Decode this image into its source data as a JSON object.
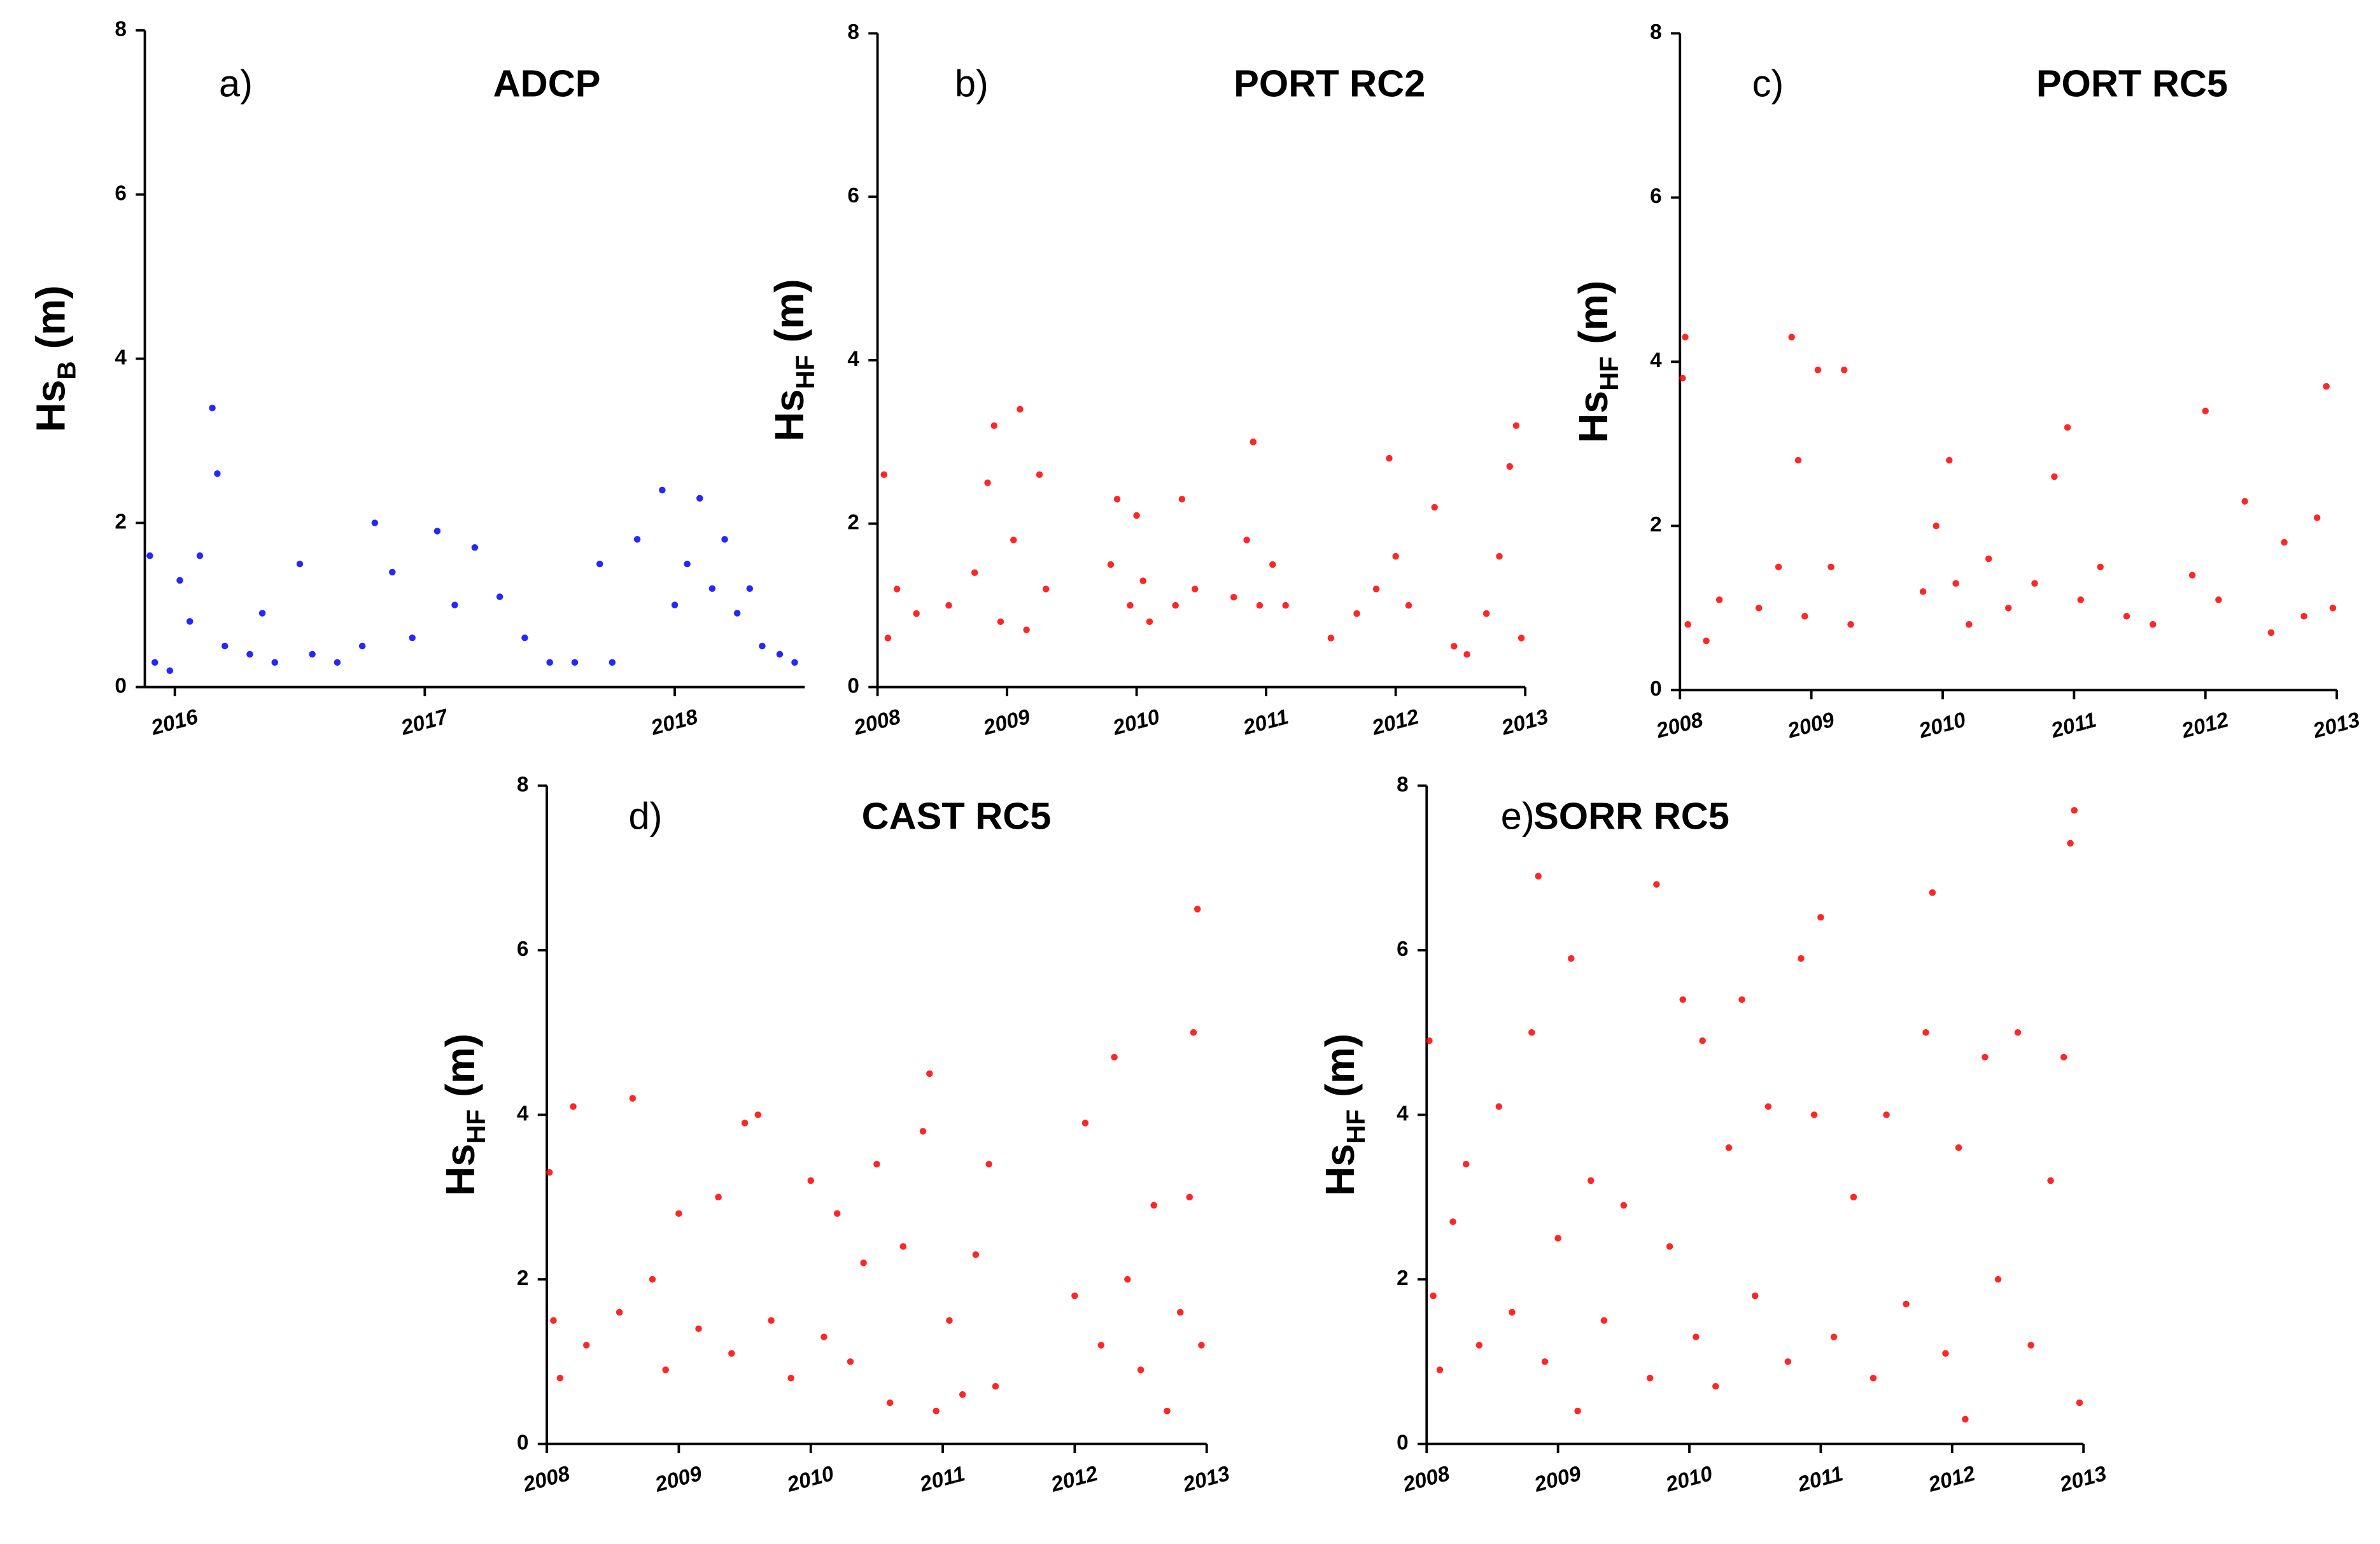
{
  "chart_data": [
    {
      "type": "scatter",
      "panel": "a)",
      "title": "ADCP",
      "ylabel": "Hs",
      "ylabel_sub": "B",
      "ylabel_unit": "(m)",
      "color": "#0000ff",
      "xlim": [
        2015.88,
        2018.52
      ],
      "xticks": [
        2016,
        2017,
        2018
      ],
      "ylim": [
        0,
        8
      ],
      "yticks": [
        0,
        2,
        4,
        6,
        8
      ],
      "x": [
        2015.9,
        2015.92,
        2015.98,
        2016.02,
        2016.06,
        2016.1,
        2016.15,
        2016.17,
        2016.2,
        2016.3,
        2016.35,
        2016.4,
        2016.5,
        2016.55,
        2016.65,
        2016.75,
        2016.8,
        2016.87,
        2016.95,
        2017.05,
        2017.12,
        2017.2,
        2017.3,
        2017.4,
        2017.5,
        2017.6,
        2017.7,
        2017.75,
        2017.85,
        2017.95,
        2018.0,
        2018.05,
        2018.1,
        2018.15,
        2018.2,
        2018.25,
        2018.3,
        2018.35,
        2018.42,
        2018.48
      ],
      "values": [
        1.6,
        0.3,
        0.2,
        1.3,
        0.8,
        1.6,
        3.4,
        2.6,
        0.5,
        0.4,
        0.9,
        0.3,
        1.5,
        0.4,
        0.3,
        0.5,
        2.0,
        1.4,
        0.6,
        1.9,
        1.0,
        1.7,
        1.1,
        0.6,
        0.3,
        0.3,
        1.5,
        0.3,
        1.8,
        2.4,
        1.0,
        1.5,
        2.3,
        1.2,
        1.8,
        0.9,
        1.2,
        0.5,
        0.4,
        0.3
      ]
    },
    {
      "type": "scatter",
      "panel": "b)",
      "title": "PORT RC2",
      "ylabel": "Hs",
      "ylabel_sub": "HF",
      "ylabel_unit": "(m)",
      "color": "#ff0000",
      "xlim": [
        2008,
        2013
      ],
      "xticks": [
        2008,
        2009,
        2010,
        2011,
        2012,
        2013
      ],
      "ylim": [
        0,
        8
      ],
      "yticks": [
        0,
        2,
        4,
        6,
        8
      ],
      "x": [
        2008.05,
        2008.08,
        2008.15,
        2008.3,
        2008.55,
        2008.75,
        2008.85,
        2008.9,
        2008.95,
        2009.05,
        2009.1,
        2009.15,
        2009.25,
        2009.3,
        2009.8,
        2009.85,
        2009.95,
        2010.0,
        2010.05,
        2010.1,
        2010.3,
        2010.35,
        2010.45,
        2010.75,
        2010.85,
        2010.9,
        2010.95,
        2011.05,
        2011.15,
        2011.5,
        2011.7,
        2011.85,
        2011.95,
        2012.0,
        2012.1,
        2012.3,
        2012.45,
        2012.55,
        2012.7,
        2012.8,
        2012.88,
        2012.93,
        2012.97
      ],
      "values": [
        2.6,
        0.6,
        1.2,
        0.9,
        1.0,
        1.4,
        2.5,
        3.2,
        0.8,
        1.8,
        3.4,
        0.7,
        2.6,
        1.2,
        1.5,
        2.3,
        1.0,
        2.1,
        1.3,
        0.8,
        1.0,
        2.3,
        1.2,
        1.1,
        1.8,
        3.0,
        1.0,
        1.5,
        1.0,
        0.6,
        0.9,
        1.2,
        2.8,
        1.6,
        1.0,
        2.2,
        0.5,
        0.4,
        0.9,
        1.6,
        2.7,
        3.2,
        0.6
      ]
    },
    {
      "type": "scatter",
      "panel": "c)",
      "title": "PORT RC5",
      "ylabel": "Hs",
      "ylabel_sub": "HF",
      "ylabel_unit": "(m)",
      "color": "#ff0000",
      "xlim": [
        2008,
        2013
      ],
      "xticks": [
        2008,
        2009,
        2010,
        2011,
        2012,
        2013
      ],
      "ylim": [
        0,
        8
      ],
      "yticks": [
        0,
        2,
        4,
        6,
        8
      ],
      "x": [
        2008.02,
        2008.04,
        2008.06,
        2008.2,
        2008.3,
        2008.6,
        2008.75,
        2008.85,
        2008.9,
        2008.95,
        2009.05,
        2009.15,
        2009.25,
        2009.3,
        2009.85,
        2009.95,
        2010.05,
        2010.1,
        2010.2,
        2010.35,
        2010.5,
        2010.7,
        2010.85,
        2010.95,
        2011.05,
        2011.2,
        2011.4,
        2011.6,
        2011.9,
        2012.0,
        2012.1,
        2012.3,
        2012.5,
        2012.6,
        2012.75,
        2012.85,
        2012.92,
        2012.97
      ],
      "values": [
        3.8,
        4.3,
        0.8,
        0.6,
        1.1,
        1.0,
        1.5,
        4.3,
        2.8,
        0.9,
        3.9,
        1.5,
        3.9,
        0.8,
        1.2,
        2.0,
        2.8,
        1.3,
        0.8,
        1.6,
        1.0,
        1.3,
        2.6,
        3.2,
        1.1,
        1.5,
        0.9,
        0.8,
        1.4,
        3.4,
        1.1,
        2.3,
        0.7,
        1.8,
        0.9,
        2.1,
        3.7,
        1.0
      ]
    },
    {
      "type": "scatter",
      "panel": "d)",
      "title": "CAST RC5",
      "ylabel": "Hs",
      "ylabel_sub": "HF",
      "ylabel_unit": "(m)",
      "color": "#ff0000",
      "xlim": [
        2008,
        2013
      ],
      "xticks": [
        2008,
        2009,
        2010,
        2011,
        2012,
        2013
      ],
      "ylim": [
        0,
        8
      ],
      "yticks": [
        0,
        2,
        4,
        6,
        8
      ],
      "x": [
        2008.02,
        2008.05,
        2008.1,
        2008.2,
        2008.3,
        2008.55,
        2008.65,
        2008.8,
        2008.9,
        2009.0,
        2009.15,
        2009.3,
        2009.4,
        2009.5,
        2009.6,
        2009.7,
        2009.85,
        2010.0,
        2010.1,
        2010.2,
        2010.3,
        2010.4,
        2010.5,
        2010.6,
        2010.7,
        2010.85,
        2010.9,
        2010.95,
        2011.05,
        2011.15,
        2011.25,
        2011.35,
        2011.4,
        2012.0,
        2012.08,
        2012.2,
        2012.3,
        2012.4,
        2012.5,
        2012.6,
        2012.7,
        2012.8,
        2012.87,
        2012.9,
        2012.93,
        2012.96
      ],
      "values": [
        3.3,
        1.5,
        0.8,
        4.1,
        1.2,
        1.6,
        4.2,
        2.0,
        0.9,
        2.8,
        1.4,
        3.0,
        1.1,
        3.9,
        4.0,
        1.5,
        0.8,
        3.2,
        1.3,
        2.8,
        1.0,
        2.2,
        3.4,
        0.5,
        2.4,
        3.8,
        4.5,
        0.4,
        1.5,
        0.6,
        2.3,
        3.4,
        0.7,
        1.8,
        3.9,
        1.2,
        4.7,
        2.0,
        0.9,
        2.9,
        0.4,
        1.6,
        3.0,
        5.0,
        6.5,
        1.2
      ]
    },
    {
      "type": "scatter",
      "panel": "e)",
      "title": "SORR RC5",
      "ylabel": "Hs",
      "ylabel_sub": "HF",
      "ylabel_unit": "(m)",
      "color": "#ff0000",
      "xlim": [
        2008,
        2013
      ],
      "xticks": [
        2008,
        2009,
        2010,
        2011,
        2012,
        2013
      ],
      "ylim": [
        0,
        8
      ],
      "yticks": [
        0,
        2,
        4,
        6,
        8
      ],
      "x": [
        2008.02,
        2008.05,
        2008.1,
        2008.2,
        2008.3,
        2008.4,
        2008.55,
        2008.65,
        2008.8,
        2008.85,
        2008.9,
        2009.0,
        2009.1,
        2009.15,
        2009.25,
        2009.35,
        2009.5,
        2009.7,
        2009.75,
        2009.85,
        2009.95,
        2010.05,
        2010.1,
        2010.2,
        2010.3,
        2010.4,
        2010.5,
        2010.6,
        2010.75,
        2010.85,
        2010.95,
        2011.0,
        2011.1,
        2011.25,
        2011.4,
        2011.5,
        2011.65,
        2011.8,
        2011.85,
        2011.95,
        2012.05,
        2012.1,
        2012.25,
        2012.35,
        2012.5,
        2012.6,
        2012.75,
        2012.85,
        2012.9,
        2012.93,
        2012.97
      ],
      "values": [
        4.9,
        1.8,
        0.9,
        2.7,
        3.4,
        1.2,
        4.1,
        1.6,
        5.0,
        6.9,
        1.0,
        2.5,
        5.9,
        0.4,
        3.2,
        1.5,
        2.9,
        0.8,
        6.8,
        2.4,
        5.4,
        1.3,
        4.9,
        0.7,
        3.6,
        5.4,
        1.8,
        4.1,
        1.0,
        5.9,
        4.0,
        6.4,
        1.3,
        3.0,
        0.8,
        4.0,
        1.7,
        5.0,
        6.7,
        1.1,
        3.6,
        0.3,
        4.7,
        2.0,
        5.0,
        1.2,
        3.2,
        4.7,
        7.3,
        7.7,
        0.5
      ]
    }
  ]
}
